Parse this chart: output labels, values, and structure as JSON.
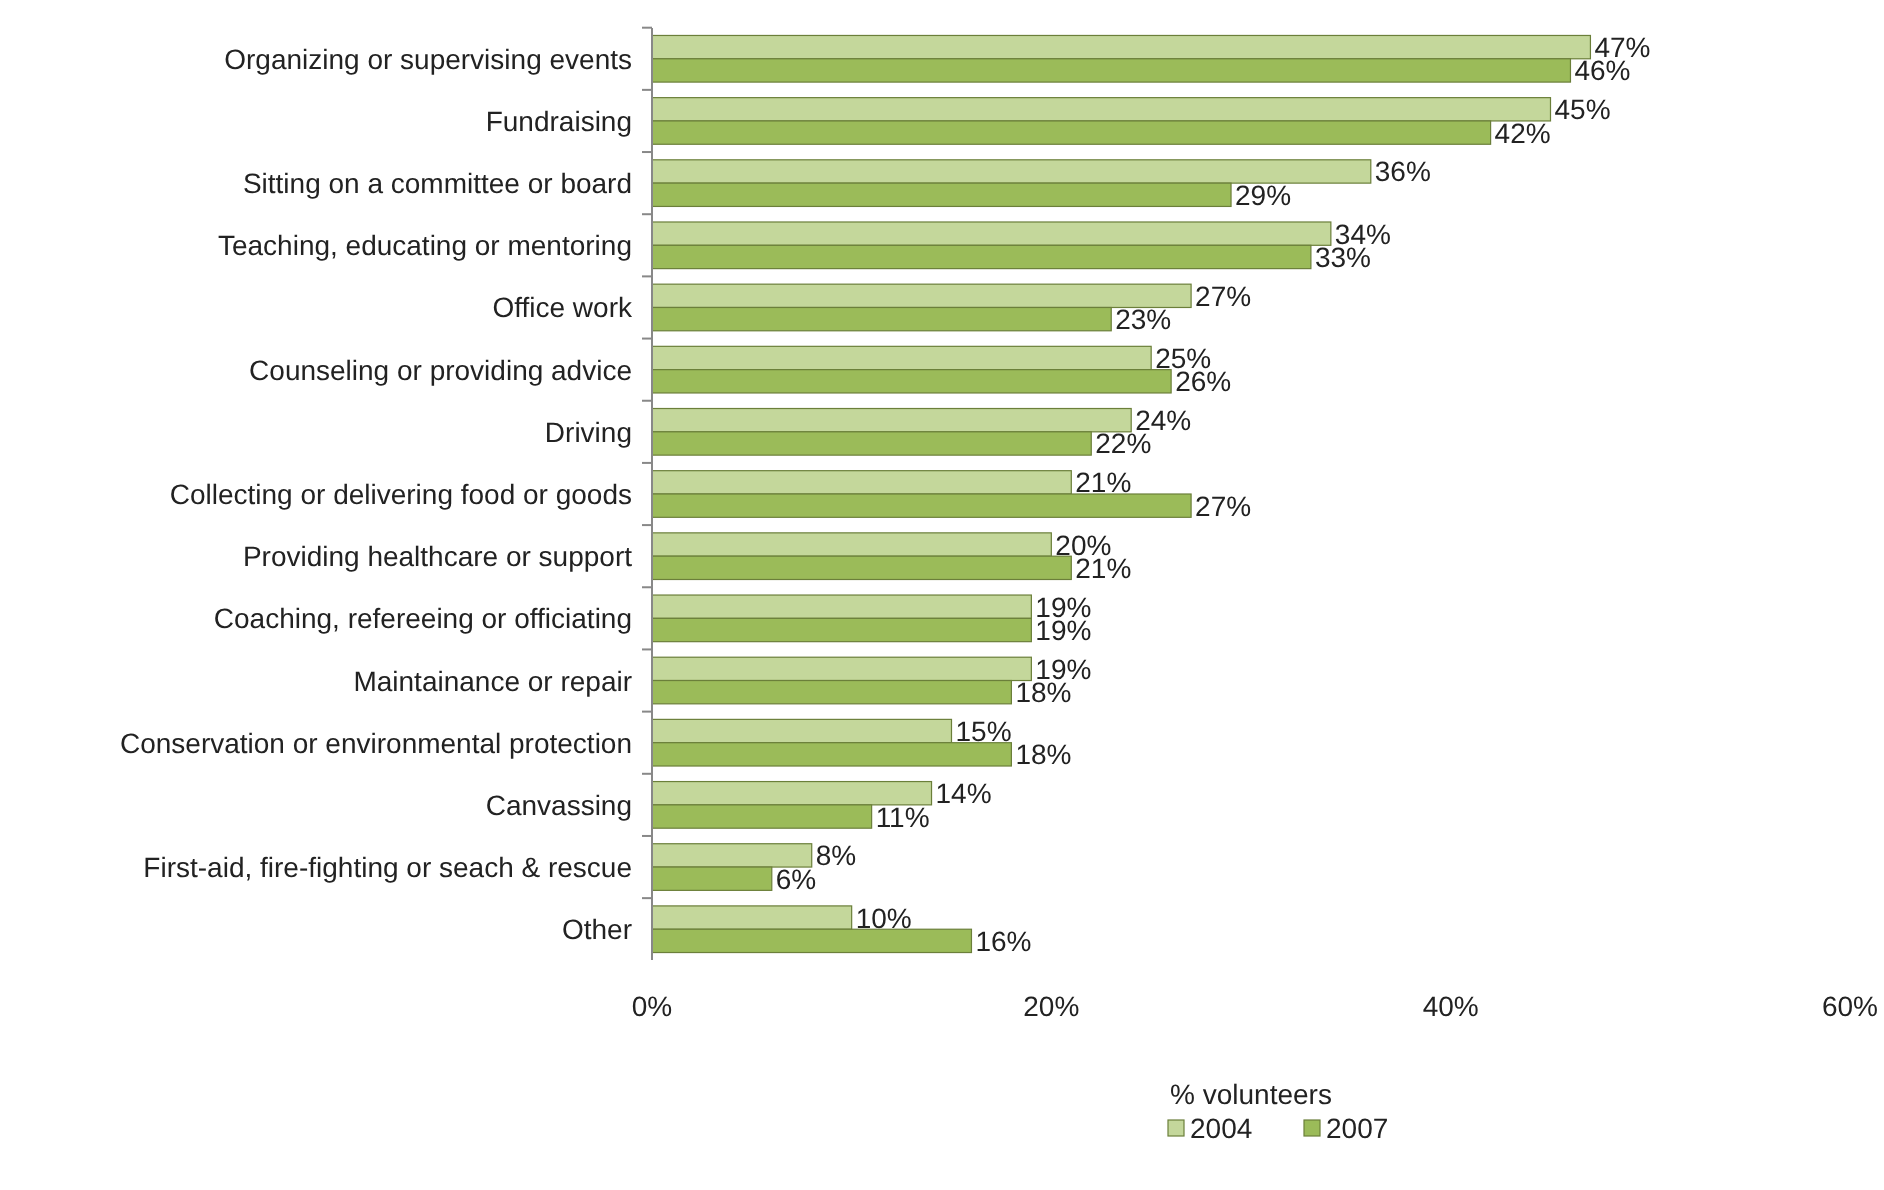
{
  "chart_data": {
    "type": "bar",
    "orientation": "horizontal",
    "xlabel": "% volunteers",
    "categories": [
      "Organizing or supervising events",
      "Fundraising",
      "Sitting on a committee or board",
      "Teaching, educating or mentoring",
      "Office work",
      "Counseling or providing advice",
      "Driving",
      "Collecting or delivering food or goods",
      "Providing healthcare or support",
      "Coaching, refereeing or officiating",
      "Maintainance or repair",
      "Conservation or environmental protection",
      "Canvassing",
      "First-aid, fire-fighting or seach & rescue",
      "Other"
    ],
    "series": [
      {
        "name": "2004",
        "color": "#c4d79b",
        "values": [
          47,
          45,
          36,
          34,
          27,
          25,
          24,
          21,
          20,
          19,
          19,
          15,
          14,
          8,
          10
        ],
        "value_labels": [
          "47%",
          "45%",
          "36%",
          "34%",
          "27%",
          "25%",
          "24%",
          "21%",
          "20%",
          "19%",
          "19%",
          "15%",
          "14%",
          "8%",
          "10%"
        ]
      },
      {
        "name": "2007",
        "color": "#9bbb59",
        "values": [
          46,
          42,
          29,
          33,
          23,
          26,
          22,
          27,
          21,
          19,
          18,
          18,
          11,
          6,
          16
        ],
        "value_labels": [
          "46%",
          "42%",
          "29%",
          "33%",
          "23%",
          "26%",
          "22%",
          "27%",
          "21%",
          "19%",
          "18%",
          "18%",
          "11%",
          "6%",
          "16%"
        ]
      }
    ],
    "xlim": [
      0,
      60
    ],
    "xticks": [
      {
        "value": 0,
        "label": "0%"
      },
      {
        "value": 20,
        "label": "20%"
      },
      {
        "value": 40,
        "label": "40%"
      },
      {
        "value": 60,
        "label": "60%"
      }
    ],
    "grid": false,
    "legend": "bottom"
  }
}
